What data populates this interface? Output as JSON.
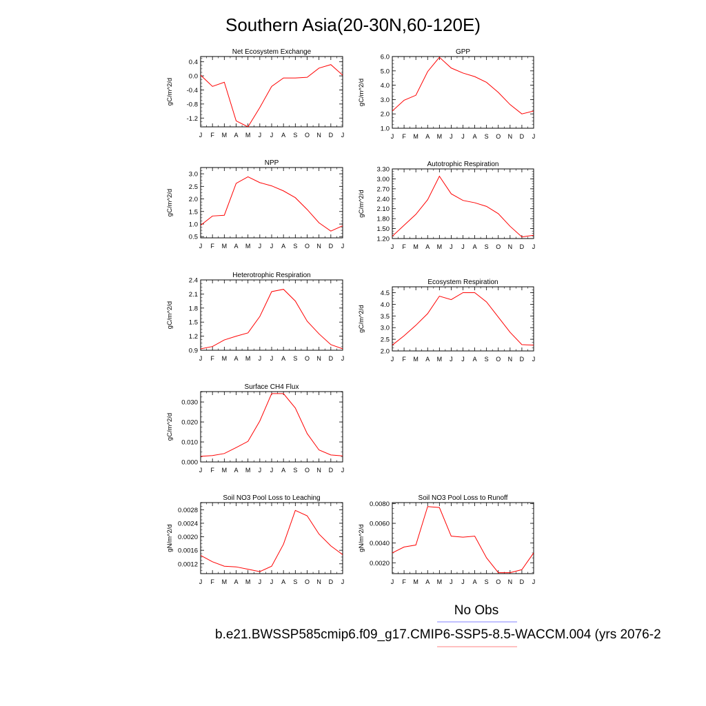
{
  "title": "Southern Asia(20-30N,60-120E)",
  "legend": {
    "obs_label": "No Obs",
    "obs_color": "#8080ff",
    "case_label": "b.e21.BWSSP585cmip6.f09_g17.CMIP6-SSP5-8.5-WACCM.004 (yrs 2076-2",
    "case_color": "#ff8080"
  },
  "line_color": "#ff0000",
  "chart_data": [
    {
      "type": "line",
      "title": "Net Ecosystem Exchange",
      "ylabel": "gC/m^2/d",
      "x": [
        "J",
        "F",
        "M",
        "A",
        "M",
        "J",
        "J",
        "A",
        "S",
        "O",
        "N",
        "D",
        "J"
      ],
      "ylim": [
        -1.45,
        0.55
      ],
      "yticks": [
        -1.2,
        -0.8,
        -0.4,
        0.0,
        0.4
      ],
      "ytick_labels": [
        "-1.2",
        "-0.8",
        "-0.4",
        "0.0",
        "0.4"
      ],
      "series": [
        {
          "values": [
            0.02,
            -0.3,
            -0.18,
            -1.28,
            -1.45,
            -0.9,
            -0.3,
            -0.06,
            -0.06,
            -0.04,
            0.22,
            0.32,
            0.02
          ]
        }
      ]
    },
    {
      "type": "line",
      "title": "GPP",
      "ylabel": "gC/m^2/d",
      "x": [
        "J",
        "F",
        "M",
        "A",
        "M",
        "J",
        "J",
        "A",
        "S",
        "O",
        "N",
        "D",
        "J"
      ],
      "ylim": [
        1.0,
        6.0
      ],
      "yticks": [
        1.0,
        2.0,
        3.0,
        4.0,
        5.0,
        6.0
      ],
      "ytick_labels": [
        "1.0",
        "2.0",
        "3.0",
        "4.0",
        "5.0",
        "6.0"
      ],
      "series": [
        {
          "values": [
            2.2,
            2.95,
            3.3,
            4.95,
            5.95,
            5.2,
            4.85,
            4.6,
            4.2,
            3.5,
            2.65,
            2.0,
            2.2
          ]
        }
      ]
    },
    {
      "type": "line",
      "title": "NPP",
      "ylabel": "gC/m^2/d",
      "x": [
        "J",
        "F",
        "M",
        "A",
        "M",
        "J",
        "J",
        "A",
        "S",
        "O",
        "N",
        "D",
        "J"
      ],
      "ylim": [
        0.45,
        3.25
      ],
      "yticks": [
        0.5,
        1.0,
        1.5,
        2.0,
        2.5,
        3.0
      ],
      "ytick_labels": [
        "0.5",
        "1.0",
        "1.5",
        "2.0",
        "2.5",
        "3.0"
      ],
      "series": [
        {
          "values": [
            0.95,
            1.32,
            1.35,
            2.62,
            2.88,
            2.65,
            2.52,
            2.32,
            2.05,
            1.58,
            1.05,
            0.72,
            0.93
          ]
        }
      ]
    },
    {
      "type": "line",
      "title": "Autotrophic Respiration",
      "ylabel": "gC/m^2/d",
      "x": [
        "J",
        "F",
        "M",
        "A",
        "M",
        "J",
        "J",
        "A",
        "S",
        "O",
        "N",
        "D",
        "J"
      ],
      "ylim": [
        1.2,
        3.3
      ],
      "yticks": [
        1.2,
        1.5,
        1.8,
        2.1,
        2.4,
        2.7,
        3.0,
        3.3
      ],
      "ytick_labels": [
        "1.20",
        "1.50",
        "1.80",
        "2.10",
        "2.40",
        "2.70",
        "3.00",
        "3.30"
      ],
      "series": [
        {
          "values": [
            1.27,
            1.6,
            1.93,
            2.37,
            3.08,
            2.55,
            2.35,
            2.28,
            2.17,
            1.95,
            1.57,
            1.25,
            1.3
          ]
        }
      ]
    },
    {
      "type": "line",
      "title": "Heterotrophic Respiration",
      "ylabel": "gC/m^2/d",
      "x": [
        "J",
        "F",
        "M",
        "A",
        "M",
        "J",
        "J",
        "A",
        "S",
        "O",
        "N",
        "D",
        "J"
      ],
      "ylim": [
        0.9,
        2.4
      ],
      "yticks": [
        0.9,
        1.2,
        1.5,
        1.8,
        2.1,
        2.4
      ],
      "ytick_labels": [
        "0.9",
        "1.2",
        "1.5",
        "1.8",
        "2.1",
        "2.4"
      ],
      "series": [
        {
          "values": [
            0.93,
            0.98,
            1.12,
            1.2,
            1.27,
            1.62,
            2.15,
            2.2,
            1.95,
            1.52,
            1.25,
            1.02,
            0.93
          ]
        }
      ]
    },
    {
      "type": "line",
      "title": "Ecosystem Respiration",
      "ylabel": "gC/m^2/d",
      "x": [
        "J",
        "F",
        "M",
        "A",
        "M",
        "J",
        "J",
        "A",
        "S",
        "O",
        "N",
        "D",
        "J"
      ],
      "ylim": [
        2.0,
        4.75
      ],
      "yticks": [
        2.0,
        2.5,
        3.0,
        3.5,
        4.0,
        4.5
      ],
      "ytick_labels": [
        "2.0",
        "2.5",
        "3.0",
        "3.5",
        "4.0",
        "4.5"
      ],
      "series": [
        {
          "values": [
            2.25,
            2.65,
            3.1,
            3.6,
            4.35,
            4.2,
            4.5,
            4.5,
            4.1,
            3.45,
            2.8,
            2.27,
            2.25
          ]
        }
      ]
    },
    {
      "type": "line",
      "title": "Surface CH4 Flux",
      "ylabel": "gC/m^2/d",
      "x": [
        "J",
        "F",
        "M",
        "A",
        "M",
        "J",
        "J",
        "A",
        "S",
        "O",
        "N",
        "D",
        "J"
      ],
      "ylim": [
        0.0,
        0.0352
      ],
      "yticks": [
        0.0,
        0.01,
        0.02,
        0.03
      ],
      "ytick_labels": [
        "0.000",
        "0.010",
        "0.020",
        "0.030"
      ],
      "series": [
        {
          "values": [
            0.0028,
            0.0032,
            0.0042,
            0.0072,
            0.0103,
            0.0205,
            0.0342,
            0.0342,
            0.027,
            0.0142,
            0.006,
            0.0035,
            0.003
          ]
        }
      ]
    },
    {
      "type": "line",
      "title": "Soil NO3 Pool Loss to Leaching",
      "ylabel": "gN/m^2/d",
      "x": [
        "J",
        "F",
        "M",
        "A",
        "M",
        "J",
        "J",
        "A",
        "S",
        "O",
        "N",
        "D",
        "J"
      ],
      "ylim": [
        0.00091,
        0.00301
      ],
      "yticks": [
        0.0012,
        0.0016,
        0.002,
        0.0024,
        0.0028
      ],
      "ytick_labels": [
        "0.0012",
        "0.0016",
        "0.0020",
        "0.0024",
        "0.0028"
      ],
      "series": [
        {
          "values": [
            0.00145,
            0.00126,
            0.00113,
            0.00111,
            0.00104,
            0.00097,
            0.00113,
            0.00178,
            0.00278,
            0.00262,
            0.00208,
            0.00173,
            0.00147
          ]
        }
      ]
    },
    {
      "type": "line",
      "title": "Soil NO3 Pool Loss to Runoff",
      "ylabel": "gN/m^2/d",
      "x": [
        "J",
        "F",
        "M",
        "A",
        "M",
        "J",
        "J",
        "A",
        "S",
        "O",
        "N",
        "D",
        "J"
      ],
      "ylim": [
        0.0009,
        0.0081
      ],
      "yticks": [
        0.002,
        0.004,
        0.006,
        0.008
      ],
      "ytick_labels": [
        "0.0020",
        "0.0040",
        "0.0060",
        "0.0080"
      ],
      "series": [
        {
          "values": [
            0.003,
            0.0036,
            0.0038,
            0.0077,
            0.0076,
            0.0047,
            0.0046,
            0.0047,
            0.0025,
            0.001,
            0.001,
            0.0013,
            0.003
          ]
        }
      ]
    }
  ]
}
